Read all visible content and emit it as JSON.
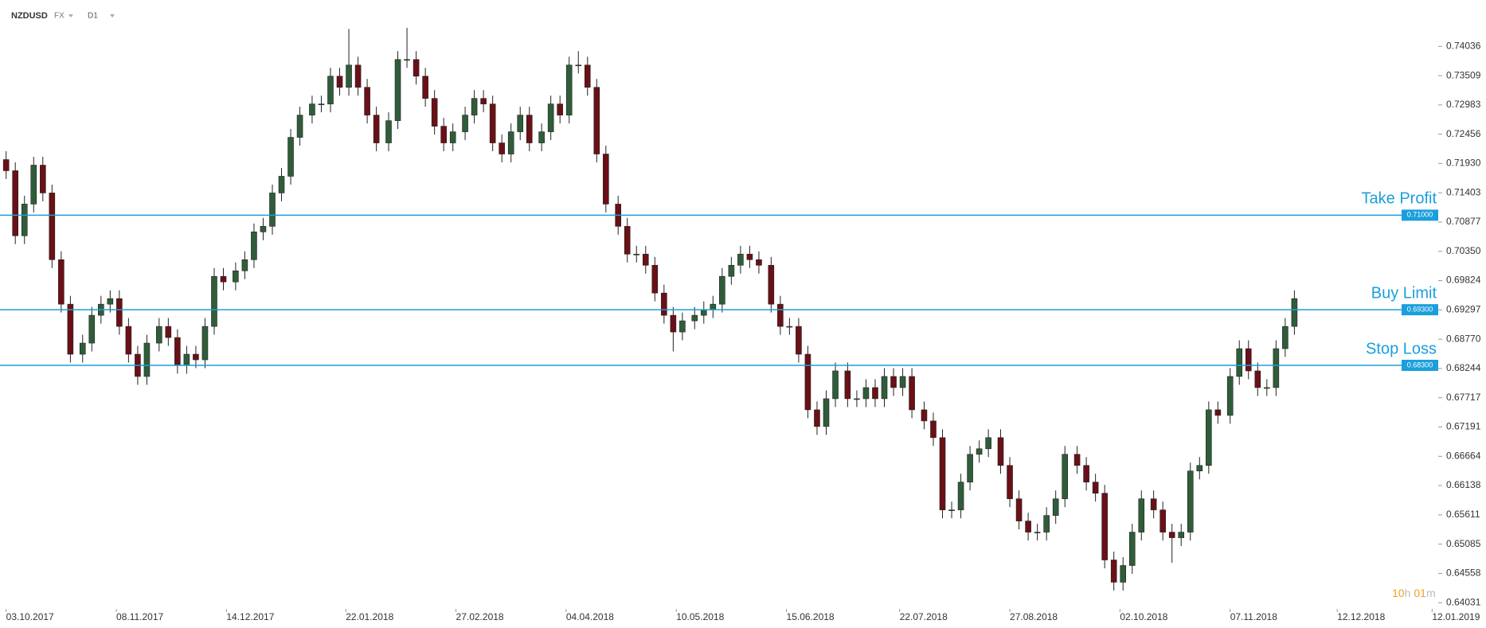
{
  "chart_data": {
    "type": "candlestick",
    "symbol": "NZDUSD",
    "market": "FX",
    "timeframe": "D1",
    "up_color": "#2f5d3a",
    "down_color": "#6a1016",
    "level_color": "#1a9fdc",
    "x": [
      "2017-10-03",
      "2017-10-06",
      "2017-10-09",
      "2017-10-12",
      "2017-10-15",
      "2017-10-18",
      "2017-10-21",
      "2017-10-24",
      "2017-10-28",
      "2017-10-31",
      "2017-11-03",
      "2017-11-06",
      "2017-11-09",
      "2017-11-12",
      "2017-11-15",
      "2017-11-18",
      "2017-11-22",
      "2017-11-25",
      "2017-11-28",
      "2017-12-01",
      "2017-12-04",
      "2017-12-07",
      "2017-12-10",
      "2017-12-13",
      "2017-12-17",
      "2017-12-20",
      "2017-12-23",
      "2017-12-26",
      "2017-12-29",
      "2018-01-01",
      "2018-01-04",
      "2018-01-07",
      "2018-01-11",
      "2018-01-14",
      "2018-01-17",
      "2018-01-20",
      "2018-01-23",
      "2018-01-26",
      "2018-01-29",
      "2018-02-01",
      "2018-02-05",
      "2018-02-08",
      "2018-02-11",
      "2018-02-14",
      "2018-02-17",
      "2018-02-20",
      "2018-02-23",
      "2018-02-26",
      "2018-03-02",
      "2018-03-05",
      "2018-03-08",
      "2018-03-11",
      "2018-03-14",
      "2018-03-17",
      "2018-03-20",
      "2018-03-23",
      "2018-03-27",
      "2018-03-30",
      "2018-04-02",
      "2018-04-05",
      "2018-04-08",
      "2018-04-11",
      "2018-04-14",
      "2018-04-17",
      "2018-04-21",
      "2018-04-24",
      "2018-04-27",
      "2018-04-30",
      "2018-05-03",
      "2018-05-06",
      "2018-05-09",
      "2018-05-12",
      "2018-05-16",
      "2018-05-19",
      "2018-05-22",
      "2018-05-25",
      "2018-05-28",
      "2018-05-31",
      "2018-06-03",
      "2018-06-06",
      "2018-06-10",
      "2018-06-13",
      "2018-06-16",
      "2018-06-19",
      "2018-06-22",
      "2018-06-25",
      "2018-06-28",
      "2018-07-01",
      "2018-07-05",
      "2018-07-08",
      "2018-07-11",
      "2018-07-14",
      "2018-07-17",
      "2018-07-20",
      "2018-07-23",
      "2018-07-26",
      "2018-07-30",
      "2018-08-02",
      "2018-08-05",
      "2018-08-08",
      "2018-08-11",
      "2018-08-14",
      "2018-08-17",
      "2018-08-20",
      "2018-08-24",
      "2018-08-27",
      "2018-08-30",
      "2018-09-02",
      "2018-09-05",
      "2018-09-08",
      "2018-09-11",
      "2018-09-14",
      "2018-09-18",
      "2018-09-21",
      "2018-09-24",
      "2018-09-27",
      "2018-09-30",
      "2018-10-03",
      "2018-10-06",
      "2018-10-09",
      "2018-10-13",
      "2018-10-16",
      "2018-10-19",
      "2018-10-22",
      "2018-10-25",
      "2018-10-28",
      "2018-10-31",
      "2018-11-03",
      "2018-11-07",
      "2018-11-10",
      "2018-11-13",
      "2018-11-16",
      "2018-11-19",
      "2018-11-22",
      "2018-11-25",
      "2018-11-28"
    ],
    "open": [
      0.72,
      0.718,
      0.7063,
      0.712,
      0.719,
      0.714,
      0.702,
      0.694,
      0.685,
      0.687,
      0.692,
      0.694,
      0.695,
      0.69,
      0.685,
      0.681,
      0.687,
      0.69,
      0.688,
      0.683,
      0.685,
      0.684,
      0.69,
      0.699,
      0.698,
      0.7,
      0.702,
      0.707,
      0.708,
      0.714,
      0.717,
      0.724,
      0.728,
      0.73,
      0.73,
      0.735,
      0.733,
      0.737,
      0.733,
      0.728,
      0.723,
      0.727,
      0.738,
      0.738,
      0.735,
      0.731,
      0.726,
      0.723,
      0.725,
      0.728,
      0.731,
      0.73,
      0.723,
      0.721,
      0.725,
      0.728,
      0.723,
      0.725,
      0.73,
      0.728,
      0.737,
      0.737,
      0.733,
      0.721,
      0.712,
      0.708,
      0.703,
      0.703,
      0.701,
      0.696,
      0.692,
      0.689,
      0.691,
      0.692,
      0.693,
      0.694,
      0.699,
      0.701,
      0.703,
      0.702,
      0.701,
      0.694,
      0.69,
      0.69,
      0.685,
      0.675,
      0.672,
      0.677,
      0.682,
      0.677,
      0.677,
      0.679,
      0.677,
      0.681,
      0.679,
      0.681,
      0.675,
      0.673,
      0.67,
      0.657,
      0.657,
      0.662,
      0.667,
      0.668,
      0.67,
      0.665,
      0.659,
      0.655,
      0.653,
      0.653,
      0.656,
      0.659,
      0.667,
      0.665,
      0.662,
      0.66,
      0.648,
      0.644,
      0.647,
      0.653,
      0.659,
      0.657,
      0.653,
      0.652,
      0.653,
      0.664,
      0.665,
      0.675,
      0.674,
      0.681,
      0.686,
      0.682,
      0.679,
      0.679,
      0.686,
      0.69
    ],
    "high": [
      0.7215,
      0.7195,
      0.7135,
      0.7205,
      0.7205,
      0.7155,
      0.7035,
      0.6955,
      0.6885,
      0.6935,
      0.6955,
      0.6965,
      0.6965,
      0.6915,
      0.6865,
      0.6885,
      0.6915,
      0.6915,
      0.6895,
      0.6865,
      0.6865,
      0.6915,
      0.7005,
      0.7005,
      0.7015,
      0.7035,
      0.7085,
      0.7095,
      0.7155,
      0.7185,
      0.7255,
      0.7295,
      0.7315,
      0.7315,
      0.7365,
      0.7365,
      0.7435,
      0.7385,
      0.7345,
      0.7295,
      0.7285,
      0.7395,
      0.7437,
      0.7395,
      0.7365,
      0.7325,
      0.7275,
      0.7265,
      0.7295,
      0.7325,
      0.7325,
      0.7315,
      0.7245,
      0.7265,
      0.7295,
      0.7295,
      0.7265,
      0.7315,
      0.7315,
      0.7385,
      0.7395,
      0.7385,
      0.7345,
      0.7225,
      0.7135,
      0.7095,
      0.7045,
      0.7045,
      0.7025,
      0.6975,
      0.6935,
      0.6925,
      0.6935,
      0.6945,
      0.6955,
      0.7005,
      0.7025,
      0.7045,
      0.7045,
      0.7035,
      0.7025,
      0.6955,
      0.6915,
      0.6915,
      0.6865,
      0.6765,
      0.6785,
      0.6835,
      0.6835,
      0.6785,
      0.6805,
      0.6805,
      0.6825,
      0.6825,
      0.6825,
      0.6825,
      0.6765,
      0.6745,
      0.6715,
      0.6585,
      0.6635,
      0.6685,
      0.6695,
      0.6715,
      0.6715,
      0.6665,
      0.6605,
      0.6565,
      0.6545,
      0.6575,
      0.6605,
      0.6685,
      0.6685,
      0.6665,
      0.6635,
      0.6615,
      0.6495,
      0.6485,
      0.6545,
      0.6605,
      0.6605,
      0.6585,
      0.6545,
      0.6545,
      0.6655,
      0.6665,
      0.6765,
      0.6765,
      0.6825,
      0.6875,
      0.6875,
      0.6835,
      0.6805,
      0.6875,
      0.6915,
      0.6965
    ],
    "low": [
      0.7165,
      0.7048,
      0.7048,
      0.7105,
      0.7125,
      0.7005,
      0.6925,
      0.6835,
      0.6835,
      0.6855,
      0.6905,
      0.6925,
      0.6885,
      0.6835,
      0.6795,
      0.6795,
      0.6855,
      0.6865,
      0.6815,
      0.6815,
      0.6825,
      0.6825,
      0.6885,
      0.6965,
      0.6965,
      0.6985,
      0.7005,
      0.7055,
      0.7065,
      0.7125,
      0.7155,
      0.7225,
      0.7265,
      0.7285,
      0.7285,
      0.7315,
      0.7315,
      0.7315,
      0.7265,
      0.7215,
      0.7215,
      0.7255,
      0.7365,
      0.7335,
      0.7295,
      0.7245,
      0.7215,
      0.7215,
      0.7235,
      0.7265,
      0.7285,
      0.7215,
      0.7195,
      0.7195,
      0.7235,
      0.7215,
      0.7215,
      0.7235,
      0.7265,
      0.7265,
      0.7355,
      0.7315,
      0.7195,
      0.7105,
      0.7065,
      0.7015,
      0.7015,
      0.6995,
      0.6945,
      0.6905,
      0.6855,
      0.6875,
      0.6895,
      0.6905,
      0.6915,
      0.6925,
      0.6975,
      0.6995,
      0.7005,
      0.6995,
      0.6925,
      0.6885,
      0.6885,
      0.6835,
      0.6735,
      0.6705,
      0.6705,
      0.6755,
      0.6755,
      0.6755,
      0.6755,
      0.6755,
      0.6755,
      0.6775,
      0.6775,
      0.6735,
      0.6715,
      0.6685,
      0.6555,
      0.6555,
      0.6555,
      0.6605,
      0.6655,
      0.6665,
      0.6635,
      0.6575,
      0.6535,
      0.6515,
      0.6515,
      0.6515,
      0.6545,
      0.6575,
      0.6635,
      0.6605,
      0.6585,
      0.6465,
      0.6425,
      0.6425,
      0.6455,
      0.6515,
      0.6555,
      0.6515,
      0.6475,
      0.6505,
      0.6515,
      0.6625,
      0.6635,
      0.6725,
      0.6725,
      0.6795,
      0.6805,
      0.6775,
      0.6775,
      0.6775,
      0.6845,
      0.6885
    ],
    "close": [
      0.718,
      0.7063,
      0.712,
      0.719,
      0.714,
      0.702,
      0.694,
      0.685,
      0.687,
      0.692,
      0.694,
      0.695,
      0.69,
      0.685,
      0.681,
      0.687,
      0.69,
      0.688,
      0.683,
      0.685,
      0.684,
      0.69,
      0.699,
      0.698,
      0.7,
      0.702,
      0.707,
      0.708,
      0.714,
      0.717,
      0.724,
      0.728,
      0.73,
      0.73,
      0.735,
      0.733,
      0.737,
      0.733,
      0.728,
      0.723,
      0.727,
      0.738,
      0.738,
      0.735,
      0.731,
      0.726,
      0.723,
      0.725,
      0.728,
      0.731,
      0.73,
      0.723,
      0.721,
      0.725,
      0.728,
      0.723,
      0.725,
      0.73,
      0.728,
      0.737,
      0.737,
      0.733,
      0.721,
      0.712,
      0.708,
      0.703,
      0.703,
      0.701,
      0.696,
      0.692,
      0.689,
      0.691,
      0.692,
      0.693,
      0.694,
      0.699,
      0.701,
      0.703,
      0.702,
      0.701,
      0.694,
      0.69,
      0.69,
      0.685,
      0.675,
      0.672,
      0.677,
      0.682,
      0.677,
      0.677,
      0.679,
      0.677,
      0.681,
      0.679,
      0.681,
      0.675,
      0.673,
      0.67,
      0.657,
      0.657,
      0.662,
      0.667,
      0.668,
      0.67,
      0.665,
      0.659,
      0.655,
      0.653,
      0.653,
      0.656,
      0.659,
      0.667,
      0.665,
      0.662,
      0.66,
      0.648,
      0.644,
      0.647,
      0.653,
      0.659,
      0.657,
      0.653,
      0.652,
      0.653,
      0.664,
      0.665,
      0.675,
      0.674,
      0.681,
      0.686,
      0.682,
      0.679,
      0.679,
      0.686,
      0.69,
      0.695
    ],
    "xlim": [
      "2017-10-01",
      "2019-01-14"
    ],
    "xticks": [
      {
        "value": "2017-10-03",
        "label": "03.10.2017"
      },
      {
        "value": "2017-11-08",
        "label": "08.11.2017"
      },
      {
        "value": "2017-12-14",
        "label": "14.12.2017"
      },
      {
        "value": "2018-01-22",
        "label": "22.01.2018"
      },
      {
        "value": "2018-02-27",
        "label": "27.02.2018"
      },
      {
        "value": "2018-04-04",
        "label": "04.04.2018"
      },
      {
        "value": "2018-05-10",
        "label": "10.05.2018"
      },
      {
        "value": "2018-06-15",
        "label": "15.06.2018"
      },
      {
        "value": "2018-07-22",
        "label": "22.07.2018"
      },
      {
        "value": "2018-08-27",
        "label": "27.08.2018"
      },
      {
        "value": "2018-10-02",
        "label": "02.10.2018"
      },
      {
        "value": "2018-11-07",
        "label": "07.11.2018"
      },
      {
        "value": "2018-12-12",
        "label": "12.12.2018"
      },
      {
        "value": "2019-01-12",
        "label": "12.01.2019"
      }
    ],
    "ylim": [
      0.6392,
      0.7487
    ],
    "yticks": [
      0.74036,
      0.73509,
      0.72983,
      0.72456,
      {
        "value": 0.7193,
        "label": "0.71930"
      },
      0.71403,
      0.70877,
      {
        "value": 0.7035,
        "label": "0.70350"
      },
      0.69824,
      0.69297,
      {
        "value": 0.6877,
        "label": "0.68770"
      },
      0.68244,
      0.67717,
      0.67191,
      0.66664,
      0.66138,
      0.65611,
      0.65085,
      0.64558,
      0.64031
    ],
    "levels": [
      {
        "name": "Take Profit",
        "value": 0.71,
        "label": "0.71000"
      },
      {
        "name": "Buy Limit",
        "value": 0.693,
        "label": "0.69300"
      },
      {
        "name": "Stop Loss",
        "value": 0.683,
        "label": "0.68300"
      }
    ],
    "countdown": [
      "10",
      "h",
      "01",
      "m"
    ]
  }
}
